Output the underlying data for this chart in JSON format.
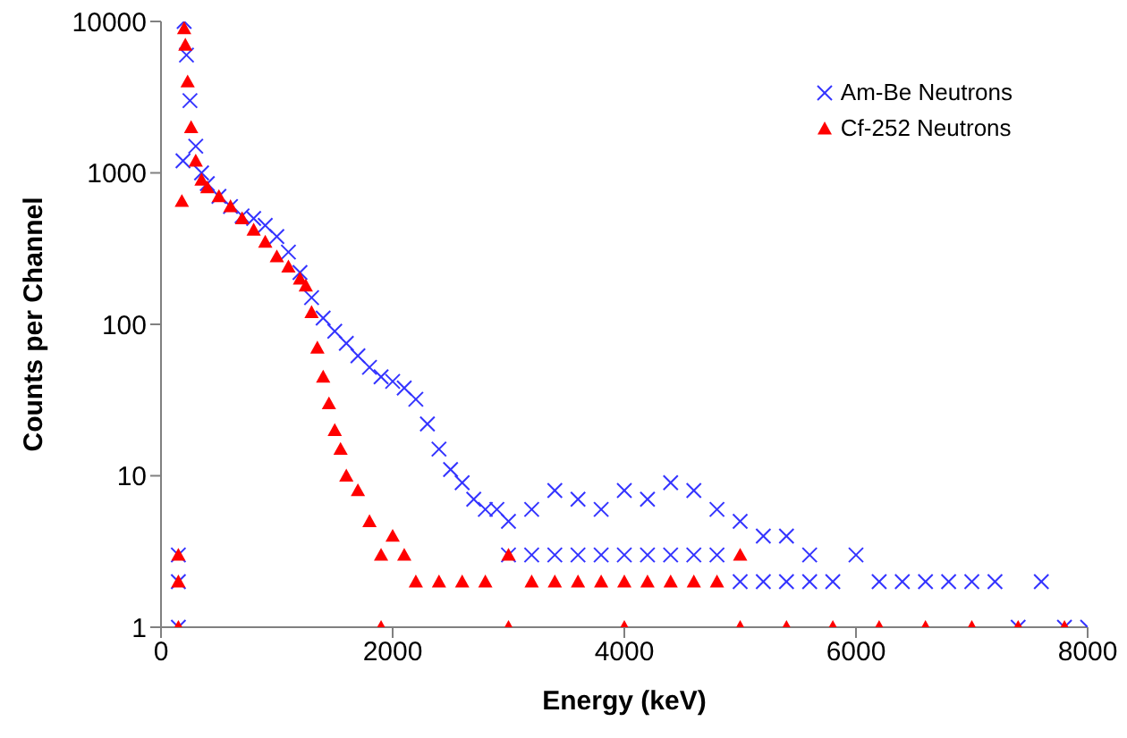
{
  "chart_data": {
    "type": "scatter",
    "xlabel": "Energy (keV)",
    "ylabel": "Counts per Channel",
    "log": "y",
    "xlim": [
      0,
      8000
    ],
    "xticks": [
      0,
      2000,
      4000,
      6000,
      8000
    ],
    "ylim": [
      1,
      10000
    ],
    "yticks": [
      1,
      10,
      100,
      1000,
      10000
    ],
    "legend": "top right",
    "series": [
      {
        "name": "Am-Be Neutrons",
        "color": "#3333ff",
        "marker": "cross",
        "x": [
          150,
          150,
          150,
          190,
          200,
          220,
          250,
          300,
          350,
          400,
          500,
          600,
          700,
          800,
          900,
          1000,
          1100,
          1200,
          1300,
          1400,
          1500,
          1600,
          1700,
          1800,
          1900,
          2000,
          2100,
          2200,
          2300,
          2400,
          2500,
          2600,
          2700,
          2800,
          2900,
          3000,
          3000,
          3200,
          3200,
          3400,
          3400,
          3600,
          3600,
          3800,
          3800,
          4000,
          4000,
          4200,
          4200,
          4400,
          4400,
          4600,
          4600,
          4800,
          4800,
          5000,
          5000,
          5200,
          5200,
          5400,
          5400,
          5600,
          5600,
          5800,
          6000,
          6200,
          6400,
          6600,
          6800,
          7000,
          7200,
          7400,
          7600,
          7800,
          8000
        ],
        "values": [
          1,
          2,
          3,
          1200,
          10000,
          6000,
          3000,
          1500,
          1000,
          850,
          700,
          600,
          520,
          500,
          450,
          380,
          300,
          220,
          150,
          110,
          90,
          75,
          62,
          52,
          45,
          42,
          38,
          32,
          22,
          15,
          11,
          9,
          7,
          6,
          6,
          5,
          3,
          6,
          3,
          8,
          3,
          7,
          3,
          6,
          3,
          8,
          3,
          7,
          3,
          9,
          3,
          8,
          3,
          6,
          3,
          5,
          2,
          4,
          2,
          4,
          2,
          3,
          2,
          2,
          3,
          2,
          2,
          2,
          2,
          2,
          2,
          1,
          2,
          1,
          1
        ]
      },
      {
        "name": "Cf-252 Neutrons",
        "color": "#ff0000",
        "marker": "triangle",
        "x": [
          150,
          150,
          150,
          180,
          200,
          210,
          230,
          260,
          300,
          350,
          400,
          500,
          600,
          700,
          800,
          900,
          1000,
          1100,
          1200,
          1250,
          1300,
          1350,
          1400,
          1450,
          1500,
          1550,
          1600,
          1700,
          1800,
          1900,
          1900,
          2000,
          2100,
          2200,
          2400,
          2600,
          2800,
          3000,
          3000,
          3200,
          3400,
          3600,
          3800,
          4000,
          4000,
          4200,
          4400,
          4600,
          4800,
          5000,
          5000,
          5400,
          5800,
          6200,
          6600,
          7000,
          7400,
          7800
        ],
        "values": [
          1,
          2,
          3,
          650,
          9000,
          7000,
          4000,
          2000,
          1200,
          900,
          800,
          700,
          600,
          500,
          420,
          350,
          280,
          240,
          200,
          180,
          120,
          70,
          45,
          30,
          20,
          15,
          10,
          8,
          5,
          3,
          1,
          4,
          3,
          2,
          2,
          2,
          2,
          3,
          1,
          2,
          2,
          2,
          2,
          2,
          1,
          2,
          2,
          2,
          2,
          3,
          1,
          1,
          1,
          1,
          1,
          1,
          1,
          1
        ]
      }
    ]
  }
}
